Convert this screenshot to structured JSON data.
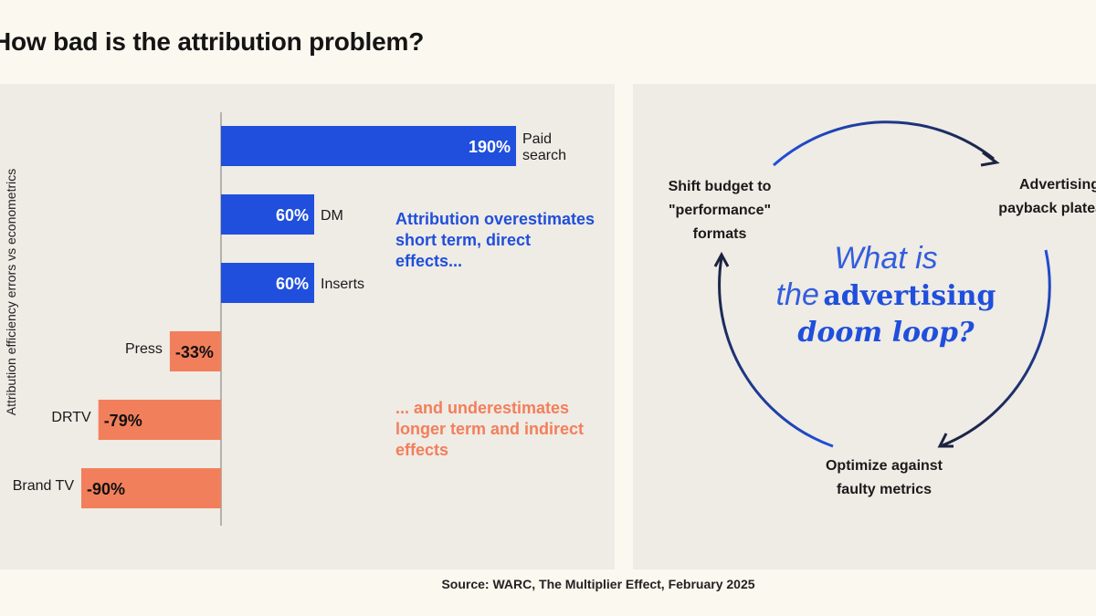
{
  "title": "How bad is the attribution problem?",
  "chart_data": {
    "type": "bar",
    "orientation": "horizontal",
    "ylabel": "Attribution efficiency errors vs econometrics",
    "categories": [
      "Paid search",
      "DM",
      "Inserts",
      "Press",
      "DRTV",
      "Brand TV"
    ],
    "values": [
      190,
      60,
      60,
      -33,
      -79,
      -90
    ],
    "value_labels": [
      "190%",
      "60%",
      "60%",
      "-33%",
      "-79%",
      "-90%"
    ],
    "category_label_lines": [
      [
        "Paid",
        "search"
      ],
      [
        "DM"
      ],
      [
        "Inserts"
      ],
      [
        "Press"
      ],
      [
        "DRTV"
      ],
      [
        "Brand TV"
      ]
    ],
    "colors": {
      "positive": "#1f4fdc",
      "negative": "#f27f5b"
    }
  },
  "annotations": {
    "over": "Attribution overestimates short term, direct effects...",
    "under": "... and underestimates longer term and indirect effects"
  },
  "doom_loop": {
    "heading_line1": "What is",
    "heading_the": "the",
    "heading_bold": "advertising",
    "heading_italic": "doom loop?",
    "step_shift": "Shift budget to \"performance\" formats",
    "step_plateau": "Advertising payback plateaus",
    "step_optimize": "Optimize against faulty metrics"
  },
  "source": "Source: WARC, The Multiplier Effect, February 2025"
}
